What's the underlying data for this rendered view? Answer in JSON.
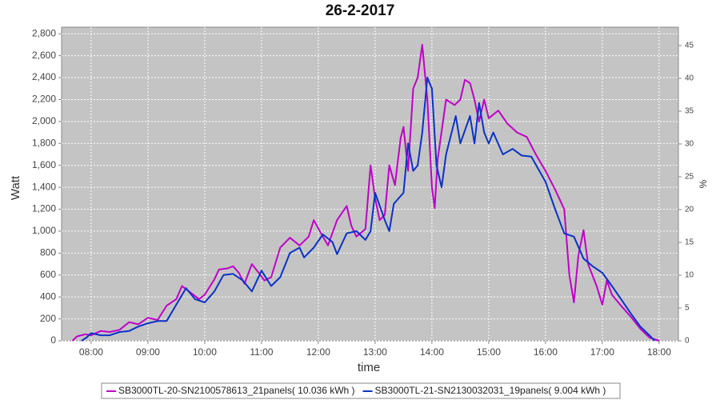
{
  "chart_data": {
    "type": "line",
    "title": "26-2-2017",
    "x_label": "time",
    "y_label": "Watt",
    "y2_label": "%",
    "xlim": [
      7.48,
      18.34
    ],
    "xticks": [
      {
        "value": 8,
        "label": "08:00"
      },
      {
        "value": 9,
        "label": "09:00"
      },
      {
        "value": 10,
        "label": "10:00"
      },
      {
        "value": 11,
        "label": "11:00"
      },
      {
        "value": 12,
        "label": "12:00"
      },
      {
        "value": 13,
        "label": "13:00"
      },
      {
        "value": 14,
        "label": "14:00"
      },
      {
        "value": 15,
        "label": "15:00"
      },
      {
        "value": 16,
        "label": "16:00"
      },
      {
        "value": 17,
        "label": "17:00"
      },
      {
        "value": 18,
        "label": "18:00"
      }
    ],
    "ylim": [
      0,
      2860
    ],
    "yticks": [
      0,
      200,
      400,
      600,
      800,
      {
        "value": 1000,
        "label": "1,000"
      },
      {
        "value": 1200,
        "label": "1,200"
      },
      {
        "value": 1400,
        "label": "1,400"
      },
      {
        "value": 1600,
        "label": "1,600"
      },
      {
        "value": 1800,
        "label": "1,800"
      },
      {
        "value": 2000,
        "label": "2,000"
      },
      {
        "value": 2200,
        "label": "2,200"
      },
      {
        "value": 2400,
        "label": "2,400"
      },
      {
        "value": 2600,
        "label": "2,600"
      },
      {
        "value": 2800,
        "label": "2,800"
      }
    ],
    "y2lim": [
      0,
      47.8
    ],
    "y2ticks": [
      0,
      5,
      10,
      15,
      20,
      25,
      30,
      35,
      40,
      45
    ],
    "grid": true,
    "legend": "bottom",
    "series": [
      {
        "name": "SB3000TL-20-SN2100578613_21panels( 10.036 kWh )",
        "color": "#c000c8",
        "x": [
          7.67,
          7.75,
          7.9,
          8.0,
          8.17,
          8.33,
          8.5,
          8.67,
          8.83,
          9.0,
          9.17,
          9.33,
          9.5,
          9.6,
          9.75,
          9.9,
          10.0,
          10.17,
          10.25,
          10.4,
          10.5,
          10.6,
          10.7,
          10.83,
          10.95,
          11.05,
          11.17,
          11.33,
          11.5,
          11.67,
          11.83,
          11.92,
          12.08,
          12.17,
          12.33,
          12.5,
          12.58,
          12.67,
          12.83,
          12.92,
          13.0,
          13.08,
          13.17,
          13.25,
          13.35,
          13.45,
          13.5,
          13.58,
          13.67,
          13.75,
          13.83,
          13.92,
          14.0,
          14.05,
          14.1,
          14.25,
          14.4,
          14.5,
          14.58,
          14.67,
          14.75,
          14.83,
          14.92,
          15.0,
          15.17,
          15.33,
          15.5,
          15.67,
          15.83,
          16.0,
          16.17,
          16.33,
          16.42,
          16.5,
          16.58,
          16.67,
          16.75,
          16.9,
          17.0,
          17.08,
          17.17,
          17.33,
          17.5,
          17.67,
          17.83,
          18.0
        ],
        "values": [
          0,
          40,
          60,
          50,
          90,
          80,
          100,
          170,
          150,
          210,
          190,
          320,
          380,
          500,
          440,
          380,
          420,
          560,
          650,
          660,
          680,
          620,
          520,
          700,
          620,
          550,
          580,
          850,
          940,
          870,
          950,
          1100,
          950,
          870,
          1100,
          1230,
          1050,
          950,
          1020,
          1600,
          1300,
          1100,
          1150,
          1600,
          1420,
          1850,
          1950,
          1550,
          2300,
          2400,
          2700,
          2200,
          1400,
          1210,
          1650,
          2200,
          2150,
          2200,
          2380,
          2350,
          2200,
          2000,
          2200,
          2030,
          2100,
          1980,
          1900,
          1860,
          1700,
          1550,
          1380,
          1200,
          600,
          350,
          780,
          1010,
          700,
          500,
          330,
          550,
          420,
          320,
          220,
          110,
          30,
          0
        ]
      },
      {
        "name": "SB3000TL-21-SN2130032031_19panels( 9.004 kWh )",
        "color": "#0a32c8",
        "x": [
          7.83,
          7.92,
          8.0,
          8.17,
          8.33,
          8.5,
          8.67,
          8.83,
          9.0,
          9.17,
          9.33,
          9.5,
          9.67,
          9.83,
          10.0,
          10.17,
          10.33,
          10.5,
          10.67,
          10.83,
          11.0,
          11.17,
          11.33,
          11.5,
          11.67,
          11.75,
          11.92,
          12.08,
          12.25,
          12.33,
          12.5,
          12.67,
          12.83,
          12.92,
          13.0,
          13.17,
          13.25,
          13.33,
          13.5,
          13.58,
          13.67,
          13.75,
          13.83,
          13.92,
          14.0,
          14.08,
          14.17,
          14.25,
          14.42,
          14.5,
          14.67,
          14.75,
          14.83,
          14.92,
          15.0,
          15.08,
          15.25,
          15.42,
          15.58,
          15.75,
          16.0,
          16.17,
          16.33,
          16.5,
          16.67,
          16.83,
          17.0,
          17.17,
          17.33,
          17.5,
          17.67,
          17.83,
          17.92
        ],
        "values": [
          0,
          30,
          70,
          50,
          50,
          80,
          90,
          130,
          160,
          180,
          180,
          330,
          480,
          380,
          350,
          450,
          600,
          610,
          550,
          450,
          640,
          500,
          580,
          800,
          850,
          760,
          850,
          970,
          900,
          790,
          980,
          1000,
          920,
          1000,
          1350,
          1100,
          1000,
          1250,
          1350,
          1800,
          1550,
          1600,
          1900,
          2400,
          2300,
          1600,
          1400,
          1700,
          2050,
          1800,
          2050,
          1800,
          2170,
          1900,
          1800,
          1900,
          1700,
          1750,
          1690,
          1680,
          1450,
          1200,
          980,
          950,
          750,
          680,
          620,
          500,
          380,
          250,
          130,
          50,
          0
        ]
      }
    ]
  }
}
